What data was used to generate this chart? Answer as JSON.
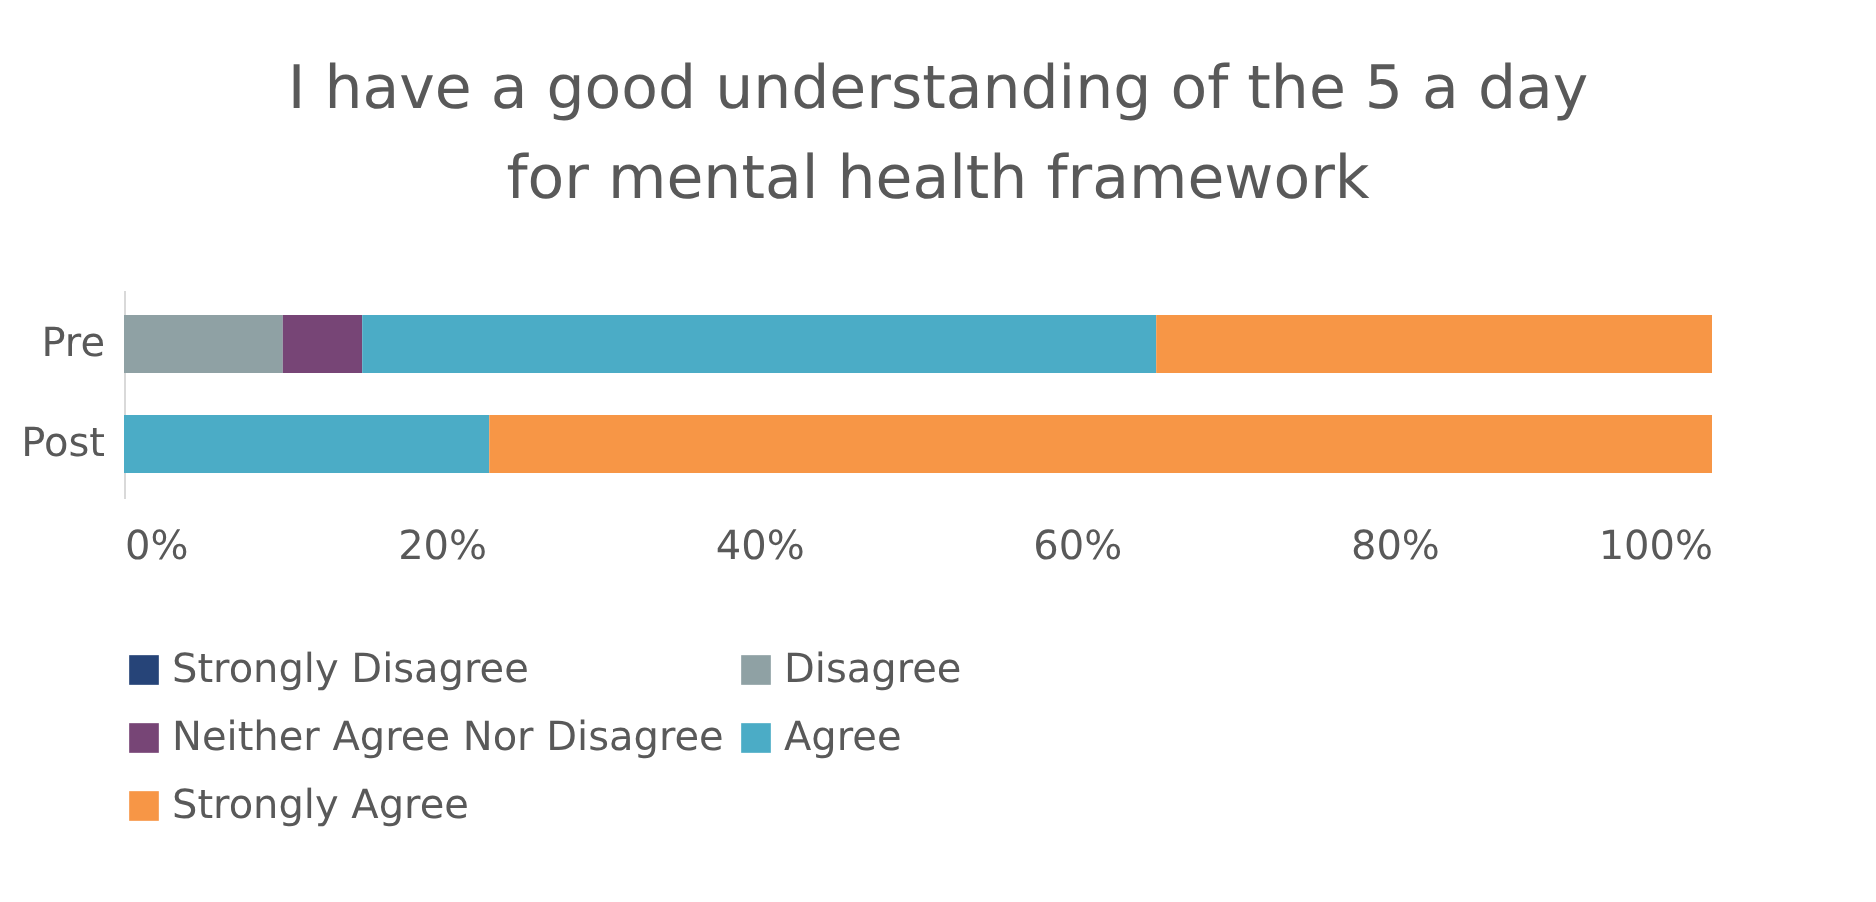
{
  "chart_data": {
    "type": "bar",
    "orientation": "horizontal",
    "stacked": true,
    "title": "I have a good understanding of the 5 a day for mental health framework",
    "categories": [
      "Pre",
      "Post"
    ],
    "series": [
      {
        "name": "Strongly Disagree",
        "color": "#264478",
        "values": [
          0,
          0
        ]
      },
      {
        "name": "Disagree",
        "color": "#8fa1a4",
        "values": [
          10,
          0
        ]
      },
      {
        "name": "Neither Agree Nor Disagree",
        "color": "#774576",
        "values": [
          5,
          0
        ]
      },
      {
        "name": "Agree",
        "color": "#4bacc6",
        "values": [
          50,
          23
        ]
      },
      {
        "name": "Strongly Agree",
        "color": "#f79646",
        "values": [
          35,
          77
        ]
      }
    ],
    "xlim": [
      0,
      100
    ],
    "xticks": [
      {
        "value": 0,
        "label": "0%"
      },
      {
        "value": 20,
        "label": "20%"
      },
      {
        "value": 40,
        "label": "40%"
      },
      {
        "value": 60,
        "label": "60%"
      },
      {
        "value": 80,
        "label": "80%"
      },
      {
        "value": 100,
        "label": "100%"
      }
    ],
    "grid": false,
    "legend": "bottom"
  }
}
